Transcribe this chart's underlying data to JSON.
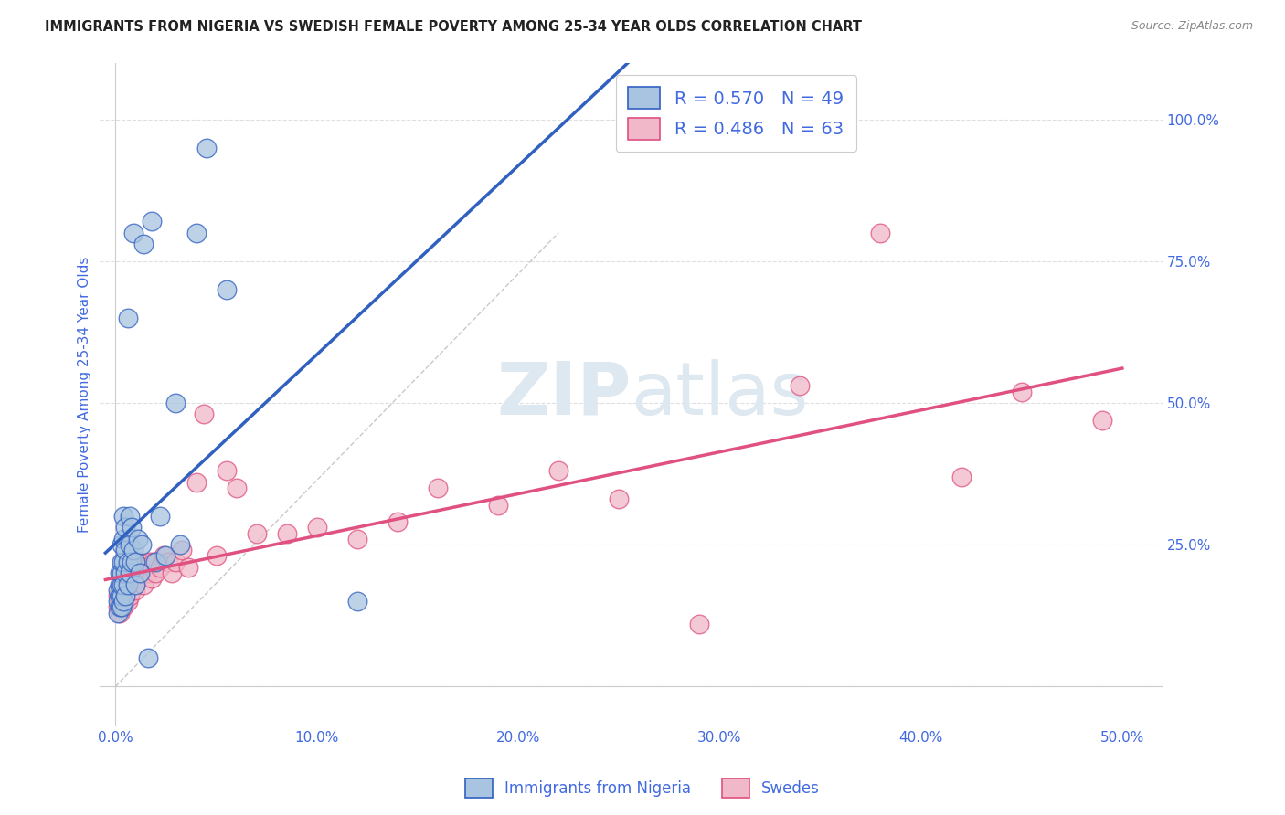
{
  "title": "IMMIGRANTS FROM NIGERIA VS SWEDISH FEMALE POVERTY AMONG 25-34 YEAR OLDS CORRELATION CHART",
  "source": "Source: ZipAtlas.com",
  "ylabel_label": "Female Poverty Among 25-34 Year Olds",
  "legend_label1": "Immigrants from Nigeria",
  "legend_label2": "Swedes",
  "r1": 0.57,
  "n1": 49,
  "r2": 0.486,
  "n2": 63,
  "blue_color": "#a8c4e0",
  "pink_color": "#f0b8c8",
  "blue_line_color": "#3060c0",
  "pink_line_color": "#e05080",
  "title_color": "#222222",
  "source_color": "#888888",
  "tick_color": "#4169e1",
  "legend_text_color": "#4169e1",
  "grid_color": "#d8d8d8",
  "watermark_color": "#dde8f0",
  "blue_scatter_x": [
    0.001,
    0.001,
    0.001,
    0.002,
    0.002,
    0.002,
    0.002,
    0.003,
    0.003,
    0.003,
    0.003,
    0.003,
    0.003,
    0.004,
    0.004,
    0.004,
    0.004,
    0.004,
    0.005,
    0.005,
    0.005,
    0.005,
    0.006,
    0.006,
    0.006,
    0.007,
    0.007,
    0.007,
    0.008,
    0.008,
    0.009,
    0.009,
    0.01,
    0.01,
    0.011,
    0.012,
    0.013,
    0.014,
    0.016,
    0.018,
    0.02,
    0.022,
    0.025,
    0.03,
    0.032,
    0.04,
    0.045,
    0.055,
    0.12
  ],
  "blue_scatter_y": [
    0.13,
    0.15,
    0.17,
    0.14,
    0.16,
    0.18,
    0.2,
    0.14,
    0.16,
    0.18,
    0.2,
    0.22,
    0.25,
    0.15,
    0.18,
    0.22,
    0.26,
    0.3,
    0.16,
    0.2,
    0.24,
    0.28,
    0.18,
    0.22,
    0.65,
    0.2,
    0.25,
    0.3,
    0.22,
    0.28,
    0.24,
    0.8,
    0.18,
    0.22,
    0.26,
    0.2,
    0.25,
    0.78,
    0.05,
    0.82,
    0.22,
    0.3,
    0.23,
    0.5,
    0.25,
    0.8,
    0.95,
    0.7,
    0.15
  ],
  "pink_scatter_x": [
    0.001,
    0.001,
    0.002,
    0.002,
    0.002,
    0.003,
    0.003,
    0.003,
    0.004,
    0.004,
    0.004,
    0.005,
    0.005,
    0.005,
    0.006,
    0.006,
    0.006,
    0.007,
    0.007,
    0.007,
    0.008,
    0.008,
    0.009,
    0.009,
    0.01,
    0.01,
    0.011,
    0.012,
    0.013,
    0.014,
    0.015,
    0.016,
    0.017,
    0.018,
    0.019,
    0.02,
    0.022,
    0.024,
    0.026,
    0.028,
    0.03,
    0.033,
    0.036,
    0.04,
    0.044,
    0.05,
    0.055,
    0.06,
    0.07,
    0.085,
    0.1,
    0.12,
    0.14,
    0.16,
    0.19,
    0.22,
    0.25,
    0.29,
    0.34,
    0.38,
    0.42,
    0.45,
    0.49
  ],
  "pink_scatter_y": [
    0.14,
    0.16,
    0.13,
    0.15,
    0.17,
    0.14,
    0.16,
    0.18,
    0.14,
    0.16,
    0.18,
    0.15,
    0.17,
    0.2,
    0.15,
    0.18,
    0.2,
    0.16,
    0.19,
    0.22,
    0.17,
    0.2,
    0.18,
    0.21,
    0.17,
    0.2,
    0.19,
    0.22,
    0.2,
    0.18,
    0.21,
    0.2,
    0.22,
    0.19,
    0.22,
    0.2,
    0.21,
    0.23,
    0.22,
    0.2,
    0.22,
    0.24,
    0.21,
    0.36,
    0.48,
    0.23,
    0.38,
    0.35,
    0.27,
    0.27,
    0.28,
    0.26,
    0.29,
    0.35,
    0.32,
    0.38,
    0.33,
    0.11,
    0.53,
    0.8,
    0.37,
    0.52,
    0.47
  ]
}
